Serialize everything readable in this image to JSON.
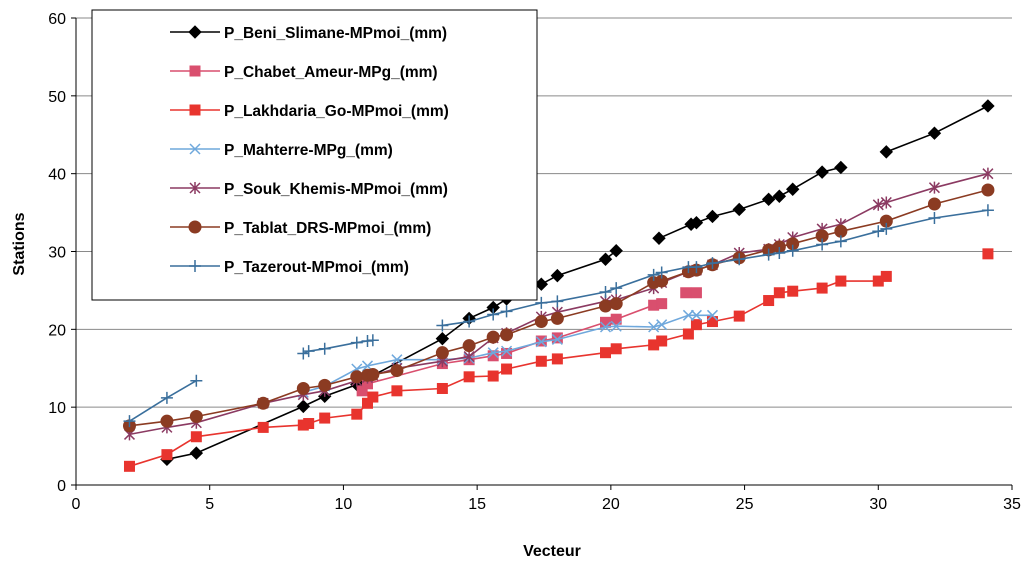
{
  "chart_data": {
    "type": "line",
    "title": "",
    "xlabel": "Vecteur",
    "ylabel": "Stations",
    "xlim": [
      0,
      35
    ],
    "ylim": [
      0,
      60
    ],
    "x_ticks": [
      0,
      5,
      10,
      15,
      20,
      25,
      30,
      35
    ],
    "y_ticks": [
      0,
      10,
      20,
      30,
      40,
      50,
      60
    ],
    "grid": "horizontal",
    "legend_position": "top-left",
    "series": [
      {
        "name": "P_Beni_Slimane-MPmoi_(mm)",
        "color": "#000000",
        "marker": "diamond",
        "segments": [
          [
            [
              3.4,
              3.3
            ],
            [
              4.5,
              4.1
            ],
            [
              8.5,
              10.1
            ],
            [
              9.3,
              11.4
            ],
            [
              10.5,
              12.9
            ],
            [
              10.9,
              13.7
            ],
            [
              13.7,
              18.8
            ],
            [
              14.7,
              21.4
            ],
            [
              15.6,
              22.8
            ],
            [
              16.1,
              23.9
            ],
            [
              17.4,
              25.8
            ],
            [
              18.0,
              26.9
            ],
            [
              19.8,
              29.0
            ],
            [
              20.2,
              30.1
            ]
          ],
          [
            [
              21.8,
              31.7
            ],
            [
              23.0,
              33.5
            ],
            [
              23.2,
              33.7
            ],
            [
              23.8,
              34.5
            ],
            [
              24.8,
              35.4
            ],
            [
              25.9,
              36.7
            ],
            [
              26.3,
              37.1
            ],
            [
              26.8,
              38.0
            ],
            [
              27.9,
              40.2
            ],
            [
              28.6,
              40.8
            ]
          ],
          [
            [
              30.3,
              42.8
            ],
            [
              32.1,
              45.2
            ],
            [
              34.1,
              48.7
            ]
          ]
        ]
      },
      {
        "name": "P_Chabet_Ameur-MPg_(mm)",
        "color": "#d94f6e",
        "marker": "square",
        "segments": [
          [
            [
              10.7,
              12.1
            ],
            [
              10.9,
              13.0
            ],
            [
              13.7,
              15.6
            ],
            [
              14.7,
              16.1
            ],
            [
              15.6,
              16.6
            ],
            [
              16.1,
              16.9
            ],
            [
              17.4,
              18.5
            ],
            [
              18.0,
              18.9
            ],
            [
              19.8,
              20.9
            ],
            [
              20.2,
              21.3
            ],
            [
              21.6,
              23.1
            ],
            [
              21.9,
              23.3
            ]
          ],
          [
            [
              22.8,
              24.7
            ],
            [
              23.2,
              24.7
            ]
          ]
        ]
      },
      {
        "name": "P_Lakhdaria_Go-MPmoi_(mm)",
        "color": "#e8342e",
        "marker": "square",
        "segments": [
          [
            [
              2.0,
              2.4
            ],
            [
              3.4,
              3.9
            ],
            [
              4.5,
              6.2
            ],
            [
              7.0,
              7.4
            ],
            [
              8.5,
              7.7
            ],
            [
              8.7,
              7.9
            ],
            [
              9.3,
              8.6
            ],
            [
              10.5,
              9.1
            ],
            [
              10.9,
              10.5
            ],
            [
              11.1,
              11.3
            ],
            [
              12.0,
              12.1
            ],
            [
              13.7,
              12.4
            ],
            [
              14.7,
              13.9
            ],
            [
              15.6,
              14.0
            ],
            [
              16.1,
              14.9
            ],
            [
              17.4,
              15.9
            ],
            [
              18.0,
              16.2
            ],
            [
              19.8,
              17.0
            ],
            [
              20.2,
              17.5
            ],
            [
              21.6,
              18.0
            ],
            [
              21.9,
              18.5
            ],
            [
              22.9,
              19.4
            ],
            [
              23.2,
              20.6
            ],
            [
              23.8,
              21.0
            ],
            [
              24.8,
              21.7
            ],
            [
              25.9,
              23.7
            ],
            [
              26.3,
              24.7
            ],
            [
              26.8,
              24.9
            ],
            [
              27.9,
              25.3
            ],
            [
              28.6,
              26.2
            ],
            [
              30.0,
              26.2
            ],
            [
              30.3,
              26.8
            ]
          ],
          [
            [
              34.1,
              29.7
            ]
          ]
        ]
      },
      {
        "name": "P_Mahterre-MPg_(mm)",
        "color": "#6fa8dc",
        "marker": "x",
        "segments": [
          [
            [
              8.5,
              11.9
            ],
            [
              9.3,
              12.7
            ],
            [
              10.5,
              14.9
            ],
            [
              10.9,
              15.3
            ],
            [
              12.0,
              16.1
            ],
            [
              13.7,
              16.1
            ],
            [
              14.7,
              16.3
            ],
            [
              15.6,
              17.0
            ],
            [
              16.1,
              17.2
            ],
            [
              17.4,
              18.4
            ],
            [
              18.0,
              18.7
            ],
            [
              19.8,
              20.3
            ],
            [
              20.2,
              20.4
            ],
            [
              21.6,
              20.3
            ],
            [
              21.9,
              20.6
            ],
            [
              22.9,
              21.8
            ],
            [
              23.2,
              21.8
            ],
            [
              23.8,
              21.8
            ]
          ]
        ]
      },
      {
        "name": "P_Souk_Khemis-MPmoi_(mm)",
        "color": "#8b3a62",
        "marker": "star",
        "segments": [
          [
            [
              2.0,
              6.5
            ],
            [
              3.4,
              7.4
            ],
            [
              4.5,
              8.0
            ],
            [
              7.0,
              10.5
            ],
            [
              8.5,
              11.6
            ],
            [
              9.3,
              12.1
            ],
            [
              10.5,
              13.4
            ],
            [
              10.9,
              13.8
            ],
            [
              11.1,
              14.1
            ],
            [
              12.0,
              15.0
            ],
            [
              13.7,
              15.9
            ],
            [
              14.7,
              16.5
            ],
            [
              15.6,
              18.9
            ],
            [
              16.1,
              19.5
            ],
            [
              17.4,
              21.6
            ],
            [
              18.0,
              22.2
            ],
            [
              19.8,
              23.6
            ],
            [
              20.2,
              23.8
            ],
            [
              21.6,
              25.3
            ],
            [
              21.9,
              26.0
            ],
            [
              22.9,
              27.4
            ],
            [
              23.2,
              27.6
            ],
            [
              23.8,
              28.3
            ],
            [
              24.8,
              29.8
            ],
            [
              25.9,
              30.3
            ],
            [
              26.3,
              30.9
            ],
            [
              26.8,
              31.8
            ],
            [
              27.9,
              32.9
            ],
            [
              28.6,
              33.5
            ],
            [
              30.0,
              36.0
            ],
            [
              30.3,
              36.3
            ],
            [
              32.1,
              38.2
            ],
            [
              34.1,
              40.0
            ]
          ]
        ]
      },
      {
        "name": "P_Tablat_DRS-MPmoi_(mm)",
        "color": "#8b3b22",
        "marker": "circle",
        "segments": [
          [
            [
              2.0,
              7.6
            ],
            [
              3.4,
              8.2
            ],
            [
              4.5,
              8.8
            ],
            [
              7.0,
              10.5
            ],
            [
              8.5,
              12.4
            ],
            [
              9.3,
              12.8
            ],
            [
              10.5,
              13.9
            ],
            [
              10.9,
              14.1
            ],
            [
              11.1,
              14.2
            ],
            [
              12.0,
              14.7
            ],
            [
              13.7,
              17.0
            ],
            [
              14.7,
              17.9
            ],
            [
              15.6,
              19.0
            ],
            [
              16.1,
              19.3
            ],
            [
              17.4,
              21.0
            ],
            [
              18.0,
              21.4
            ],
            [
              19.8,
              23.0
            ],
            [
              20.2,
              23.3
            ],
            [
              21.6,
              26.0
            ],
            [
              21.9,
              26.2
            ],
            [
              22.9,
              27.4
            ],
            [
              23.2,
              27.6
            ],
            [
              23.8,
              28.3
            ],
            [
              24.8,
              29.2
            ],
            [
              25.9,
              30.2
            ],
            [
              26.3,
              30.6
            ],
            [
              26.8,
              31.0
            ],
            [
              27.9,
              32.0
            ],
            [
              28.6,
              32.6
            ],
            [
              30.3,
              33.9
            ],
            [
              32.1,
              36.1
            ],
            [
              34.1,
              37.9
            ]
          ]
        ]
      },
      {
        "name": "P_Tazerout-MPmoi_(mm)",
        "color": "#3a6f9c",
        "marker": "plus",
        "segments": [
          [
            [
              2.0,
              8.2
            ],
            [
              3.4,
              11.2
            ],
            [
              4.5,
              13.4
            ]
          ],
          [
            [
              8.5,
              16.9
            ],
            [
              8.7,
              17.2
            ],
            [
              9.3,
              17.5
            ],
            [
              10.5,
              18.3
            ],
            [
              10.9,
              18.5
            ],
            [
              11.1,
              18.6
            ]
          ],
          [
            [
              13.7,
              20.5
            ],
            [
              14.7,
              21.0
            ],
            [
              15.6,
              21.9
            ],
            [
              16.1,
              22.3
            ],
            [
              17.4,
              23.4
            ],
            [
              18.0,
              23.6
            ],
            [
              19.8,
              24.8
            ],
            [
              20.2,
              25.3
            ],
            [
              21.6,
              27.0
            ],
            [
              21.9,
              27.3
            ],
            [
              22.9,
              28.0
            ],
            [
              23.2,
              28.0
            ],
            [
              23.8,
              28.5
            ],
            [
              24.8,
              29.0
            ],
            [
              25.9,
              29.6
            ],
            [
              26.3,
              29.8
            ],
            [
              26.8,
              30.1
            ],
            [
              27.9,
              30.9
            ],
            [
              28.6,
              31.3
            ],
            [
              30.0,
              32.6
            ],
            [
              30.3,
              32.9
            ],
            [
              32.1,
              34.3
            ],
            [
              34.1,
              35.3
            ]
          ]
        ]
      }
    ]
  }
}
